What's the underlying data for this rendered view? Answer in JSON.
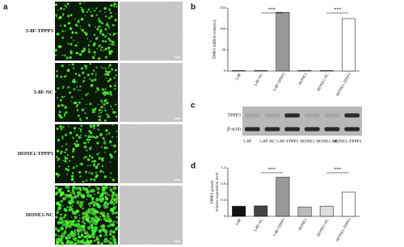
{
  "panel_labels": [
    "a",
    "b",
    "c",
    "d"
  ],
  "panel_a": {
    "row_labels": [
      "5-8F-TPPP3",
      "5-8F-NC",
      "HONE1-TPPP3",
      "HONE1-NC"
    ]
  },
  "chart_data": [
    {
      "type": "bar",
      "ylabel": "TPPP3 mRNA (relative)",
      "categories": [
        "5-8F",
        "5-8F-NC",
        "5-8F-TPPP3",
        "HONE1",
        "HONE1-NC",
        "HONE1-TPPP3"
      ],
      "values": [
        1,
        1,
        140,
        1,
        1,
        125
      ],
      "colors": [
        "#111111",
        "#333333",
        "#999999",
        "#111111",
        "#333333",
        "#ffffff"
      ],
      "ylim": [
        0,
        150
      ],
      "yticks": [
        0,
        50,
        100,
        150
      ],
      "annotations": [
        "***",
        "***"
      ]
    },
    {
      "type": "bar",
      "ylabel": [
        "TPPP3 protein",
        "relative expression level"
      ],
      "categories": [
        "5-8F",
        "5-8F-NC",
        "5-8F-TPPP3",
        "HONE1",
        "HONE1-NC",
        "HONE1-TPPP3"
      ],
      "values": [
        0.25,
        0.26,
        0.97,
        0.23,
        0.25,
        0.6
      ],
      "colors": [
        "#111111",
        "#444444",
        "#999999",
        "#bbbbbb",
        "#dddddd",
        "#ffffff"
      ],
      "ylim": [
        0,
        1.2
      ],
      "yticks": [
        0,
        0.4,
        0.8,
        1.2
      ],
      "annotations": [
        "***",
        "***"
      ]
    }
  ],
  "blot": {
    "bands": [
      "TPPP3",
      "β-actin"
    ],
    "lanes": [
      "5-8F",
      "5-8F-NC",
      "5-8F-TPPP3",
      "HONE1",
      "HONE1-NC",
      "HONE1-TPPP3"
    ]
  }
}
